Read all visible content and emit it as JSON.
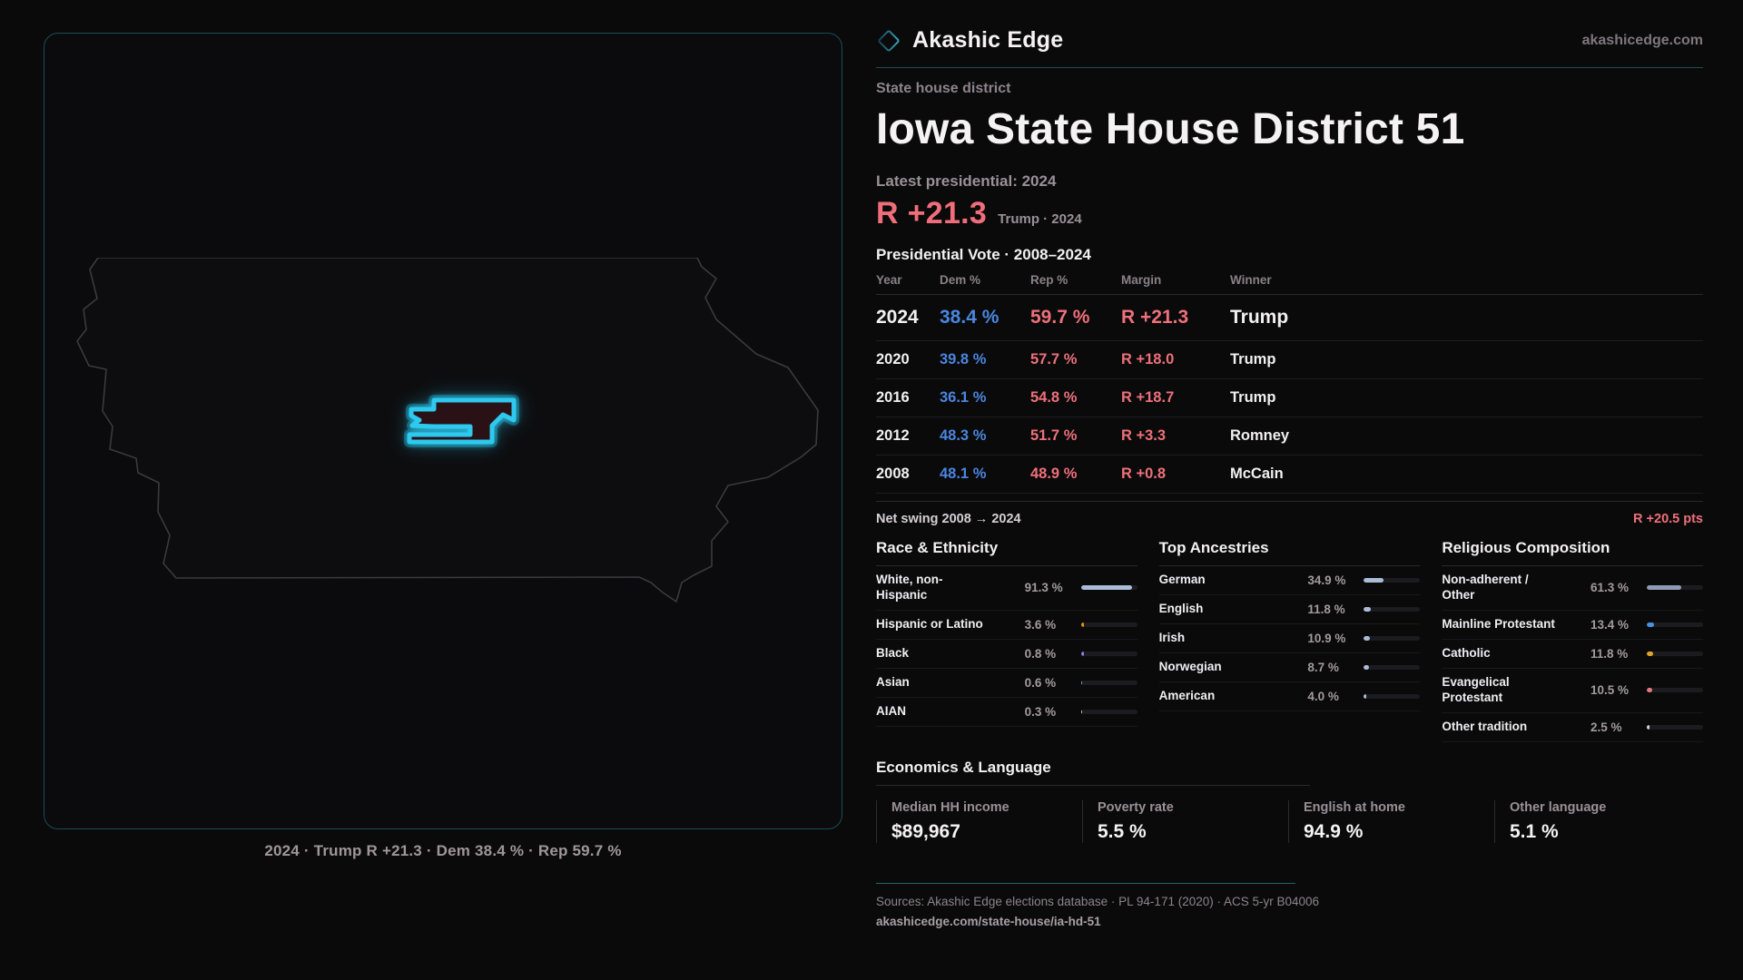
{
  "header": {
    "brand": "Akashic Edge",
    "domain": "akashicedge.com",
    "logo_icon": "diamond-outline",
    "accent_teal": "#2f8ca3"
  },
  "district": {
    "kicker": "State house district",
    "title": "Iowa State House District 51",
    "latest_label": "Latest presidential: 2024",
    "headline_margin": "R +21.3",
    "headline_context": "Trump · 2024",
    "margin_color": "#ef6e79"
  },
  "map": {
    "state": "Iowa",
    "district_color": "#2ec9ef",
    "caption": "2024 · Trump R +21.3 · Dem 38.4 % · Rep 59.7 %"
  },
  "vote_table": {
    "title": "Presidential Vote · 2008–2024",
    "columns": {
      "year": "Year",
      "dem": "Dem %",
      "rep": "Rep %",
      "margin": "Margin",
      "winner": "Winner"
    },
    "rows": [
      {
        "year": "2024",
        "dem": "38.4 %",
        "rep": "59.7 %",
        "margin": "R +21.3",
        "winner": "Trump"
      },
      {
        "year": "2020",
        "dem": "39.8 %",
        "rep": "57.7 %",
        "margin": "R +18.0",
        "winner": "Trump"
      },
      {
        "year": "2016",
        "dem": "36.1 %",
        "rep": "54.8 %",
        "margin": "R +18.7",
        "winner": "Trump"
      },
      {
        "year": "2012",
        "dem": "48.3 %",
        "rep": "51.7 %",
        "margin": "R +3.3",
        "winner": "Romney"
      },
      {
        "year": "2008",
        "dem": "48.1 %",
        "rep": "48.9 %",
        "margin": "R +0.8",
        "winner": "McCain"
      }
    ],
    "net_swing_label": "Net swing 2008 → 2024",
    "net_swing_value": "R +20.5 pts",
    "dem_color": "#4a86df",
    "rep_color": "#ee707a"
  },
  "demographics": {
    "race": {
      "title": "Race & Ethnicity",
      "rows": [
        {
          "label": "White, non-\nHispanic",
          "value": "91.3 %",
          "pct": 91.3,
          "color": "#a9bdd8"
        },
        {
          "label": "Hispanic or Latino",
          "value": "3.6 %",
          "pct": 3.6,
          "color": "#e8930e"
        },
        {
          "label": "Black",
          "value": "0.8 %",
          "pct": 0.8,
          "color": "#8b7ae8"
        },
        {
          "label": "Asian",
          "value": "0.6 %",
          "pct": 0.6,
          "color": "#5bc0c9"
        },
        {
          "label": "AIAN",
          "value": "0.3 %",
          "pct": 0.3,
          "color": "#cccccc"
        }
      ]
    },
    "ancestry": {
      "title": "Top Ancestries",
      "rows": [
        {
          "label": "German",
          "value": "34.9 %",
          "pct": 34.9,
          "color": "#a9bdd8"
        },
        {
          "label": "English",
          "value": "11.8 %",
          "pct": 11.8,
          "color": "#a9bdd8"
        },
        {
          "label": "Irish",
          "value": "10.9 %",
          "pct": 10.9,
          "color": "#a9bdd8"
        },
        {
          "label": "Norwegian",
          "value": "8.7 %",
          "pct": 8.7,
          "color": "#a9bdd8"
        },
        {
          "label": "American",
          "value": "4.0 %",
          "pct": 4.0,
          "color": "#a9bdd8"
        }
      ]
    },
    "religion": {
      "title": "Religious Composition",
      "rows": [
        {
          "label": "Non-adherent /\nOther",
          "value": "61.3 %",
          "pct": 61.3,
          "color": "#8e9bb3"
        },
        {
          "label": "Mainline Protestant",
          "value": "13.4 %",
          "pct": 13.4,
          "color": "#4a8ee8"
        },
        {
          "label": "Catholic",
          "value": "11.8 %",
          "pct": 11.8,
          "color": "#e0a528"
        },
        {
          "label": "Evangelical\nProtestant",
          "value": "10.5 %",
          "pct": 10.5,
          "color": "#e4787f"
        },
        {
          "label": "Other tradition",
          "value": "2.5 %",
          "pct": 2.5,
          "color": "#d6d4d8"
        }
      ]
    }
  },
  "economics": {
    "title": "Economics & Language",
    "stats": [
      {
        "label": "Median HH income",
        "value": "$89,967"
      },
      {
        "label": "Poverty rate",
        "value": "5.5 %"
      },
      {
        "label": "English at home",
        "value": "94.9 %"
      },
      {
        "label": "Other language",
        "value": "5.1 %"
      }
    ]
  },
  "footer": {
    "sources": "Sources: Akashic Edge elections database · PL 94-171 (2020) · ACS 5-yr B04006",
    "permalink": "akashicedge.com/state-house/ia-hd-51"
  }
}
